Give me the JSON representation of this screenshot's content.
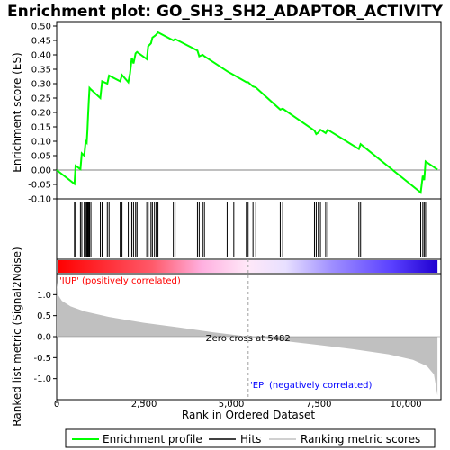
{
  "chart_data": {
    "type": "line",
    "title": "Enrichment plot: GO_SH3_SH2_ADAPTOR_ACTIVITY",
    "top_panel": {
      "ylabel": "Enrichment score (ES)",
      "ylim": [
        -0.1,
        0.5
      ],
      "yticks": [
        "-0.10",
        "-0.05",
        "0.00",
        "0.05",
        "0.10",
        "0.15",
        "0.20",
        "0.25",
        "0.30",
        "0.35",
        "0.40",
        "0.45",
        "0.50"
      ],
      "ytick_values": [
        -0.1,
        -0.05,
        0,
        0.05,
        0.1,
        0.15,
        0.2,
        0.25,
        0.3,
        0.35,
        0.4,
        0.45,
        0.5
      ],
      "series": [
        {
          "name": "Enrichment profile",
          "color": "#00ff00",
          "x": [
            0,
            510,
            540,
            680,
            720,
            790,
            830,
            860,
            880,
            900,
            920,
            940,
            980,
            1250,
            1300,
            1450,
            1500,
            1820,
            1870,
            2050,
            2100,
            2150,
            2200,
            2260,
            2300,
            2580,
            2620,
            2700,
            2740,
            2800,
            2850,
            2900,
            3340,
            3390,
            4030,
            4080,
            4180,
            4230,
            4880,
            5070,
            5430,
            5480,
            5620,
            5700,
            6400,
            6470,
            7380,
            7430,
            7490,
            7550,
            7700,
            7760,
            8650,
            8700,
            10420,
            10480,
            10520,
            10560,
            10900
          ],
          "y": [
            0.0,
            -0.048,
            0.015,
            0.003,
            0.058,
            0.05,
            0.1,
            0.095,
            0.14,
            0.19,
            0.24,
            0.285,
            0.28,
            0.25,
            0.308,
            0.3,
            0.328,
            0.308,
            0.33,
            0.305,
            0.335,
            0.39,
            0.37,
            0.405,
            0.41,
            0.385,
            0.43,
            0.44,
            0.46,
            0.465,
            0.47,
            0.478,
            0.45,
            0.455,
            0.415,
            0.395,
            0.4,
            0.395,
            0.343,
            0.33,
            0.305,
            0.305,
            0.29,
            0.287,
            0.21,
            0.213,
            0.137,
            0.125,
            0.13,
            0.14,
            0.128,
            0.14,
            0.073,
            0.09,
            -0.078,
            -0.02,
            -0.035,
            0.03,
            0.002
          ]
        }
      ]
    },
    "hits": [
      510,
      540,
      680,
      720,
      790,
      830,
      860,
      880,
      900,
      920,
      940,
      980,
      1250,
      1300,
      1450,
      1500,
      1820,
      1870,
      2050,
      2100,
      2150,
      2200,
      2260,
      2300,
      2580,
      2620,
      2700,
      2740,
      2800,
      2850,
      2900,
      3340,
      3390,
      4030,
      4080,
      4180,
      4230,
      4880,
      5070,
      5430,
      5480,
      5620,
      5700,
      6400,
      6470,
      7380,
      7430,
      7490,
      7550,
      7700,
      7760,
      8650,
      8700,
      10420,
      10480,
      10520,
      10560
    ],
    "bottom_panel": {
      "ylabel": "Ranked list metric (Signal2Noise)",
      "ylim": [
        -1.5,
        1.5
      ],
      "yticks": [
        "-1.0",
        "-0.5",
        "0.0",
        "0.5",
        "1.0"
      ],
      "ytick_values": [
        -1.0,
        -0.5,
        0.0,
        0.5,
        1.0
      ],
      "xlabel": "Rank in Ordered Dataset",
      "xlim": [
        0,
        11000
      ],
      "xticks": [
        "0",
        "2,500",
        "5,000",
        "7,500",
        "10,000"
      ],
      "xtick_values": [
        0,
        2500,
        5000,
        7500,
        10000
      ],
      "zero_cross": 5482,
      "zero_cross_label": "Zero cross at 5482",
      "pos_label": "'IUP' (positively correlated)",
      "neg_label": "'EP' (negatively correlated)",
      "metric_points": [
        [
          0,
          1.3
        ],
        [
          30,
          1.0
        ],
        [
          150,
          0.85
        ],
        [
          400,
          0.72
        ],
        [
          800,
          0.6
        ],
        [
          1500,
          0.47
        ],
        [
          2500,
          0.33
        ],
        [
          3500,
          0.22
        ],
        [
          4500,
          0.1
        ],
        [
          5482,
          0.0
        ],
        [
          6500,
          -0.1
        ],
        [
          7500,
          -0.2
        ],
        [
          8500,
          -0.3
        ],
        [
          9500,
          -0.42
        ],
        [
          10200,
          -0.55
        ],
        [
          10600,
          -0.7
        ],
        [
          10800,
          -0.9
        ],
        [
          10900,
          -1.4
        ]
      ]
    },
    "legend": [
      {
        "label": "Enrichment profile",
        "color": "#00ff00"
      },
      {
        "label": "Hits",
        "color": "#000000"
      },
      {
        "label": "Ranking metric scores",
        "color": "#c0c0c0"
      }
    ],
    "colors": {
      "pos_label": "#ff0000",
      "neg_label": "#0000ff",
      "zero_line": "#c0c0c0",
      "metric_fill": "#c0c0c0"
    }
  }
}
